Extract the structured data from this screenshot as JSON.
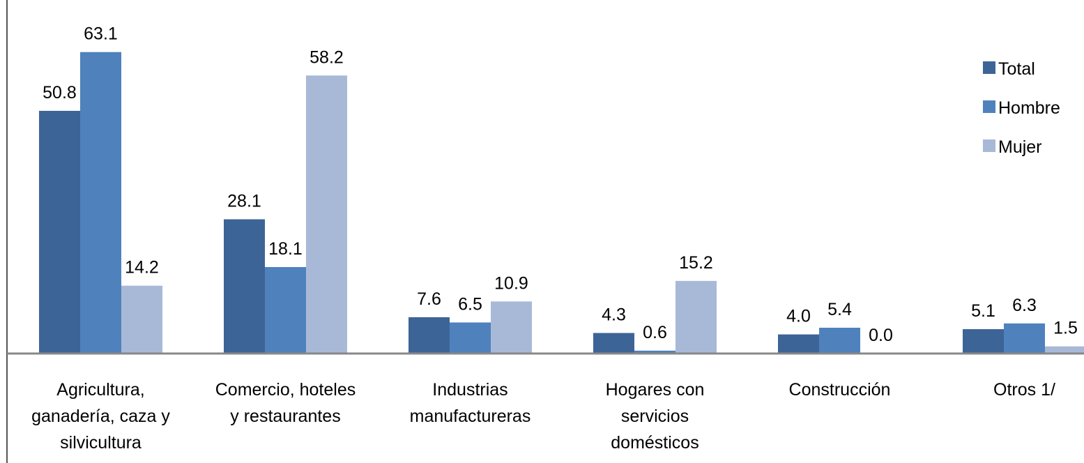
{
  "chart_data": {
    "type": "bar",
    "categories": [
      "Agricultura,\nganadería, caza y\nsilvicultura",
      "Comercio, hoteles\ny restaurantes",
      "Industrias\nmanufactureras",
      "Hogares con\nservicios\ndomésticos",
      "Construcción",
      "Otros 1/"
    ],
    "series": [
      {
        "name": "Total",
        "color": "#3d6496",
        "values": [
          50.8,
          28.1,
          7.6,
          4.3,
          4.0,
          5.1
        ],
        "value_labels": [
          "50.8",
          "28.1",
          "7.6",
          "4.3",
          "4.0",
          "5.1"
        ]
      },
      {
        "name": "Hombre",
        "color": "#4f81bd",
        "values": [
          63.1,
          18.1,
          6.5,
          0.6,
          5.4,
          6.3
        ],
        "value_labels": [
          "63.1",
          "18.1",
          "6.5",
          "0.6",
          "5.4",
          "6.3"
        ]
      },
      {
        "name": "Mujer",
        "color": "#a8b9d8",
        "values": [
          14.2,
          58.2,
          10.9,
          15.2,
          0.0,
          1.5
        ],
        "value_labels": [
          "14.2",
          "58.2",
          "10.9",
          "15.2",
          "0.0",
          "1.5"
        ]
      }
    ],
    "ylim": [
      0,
      74
    ],
    "legend": "upper right"
  }
}
